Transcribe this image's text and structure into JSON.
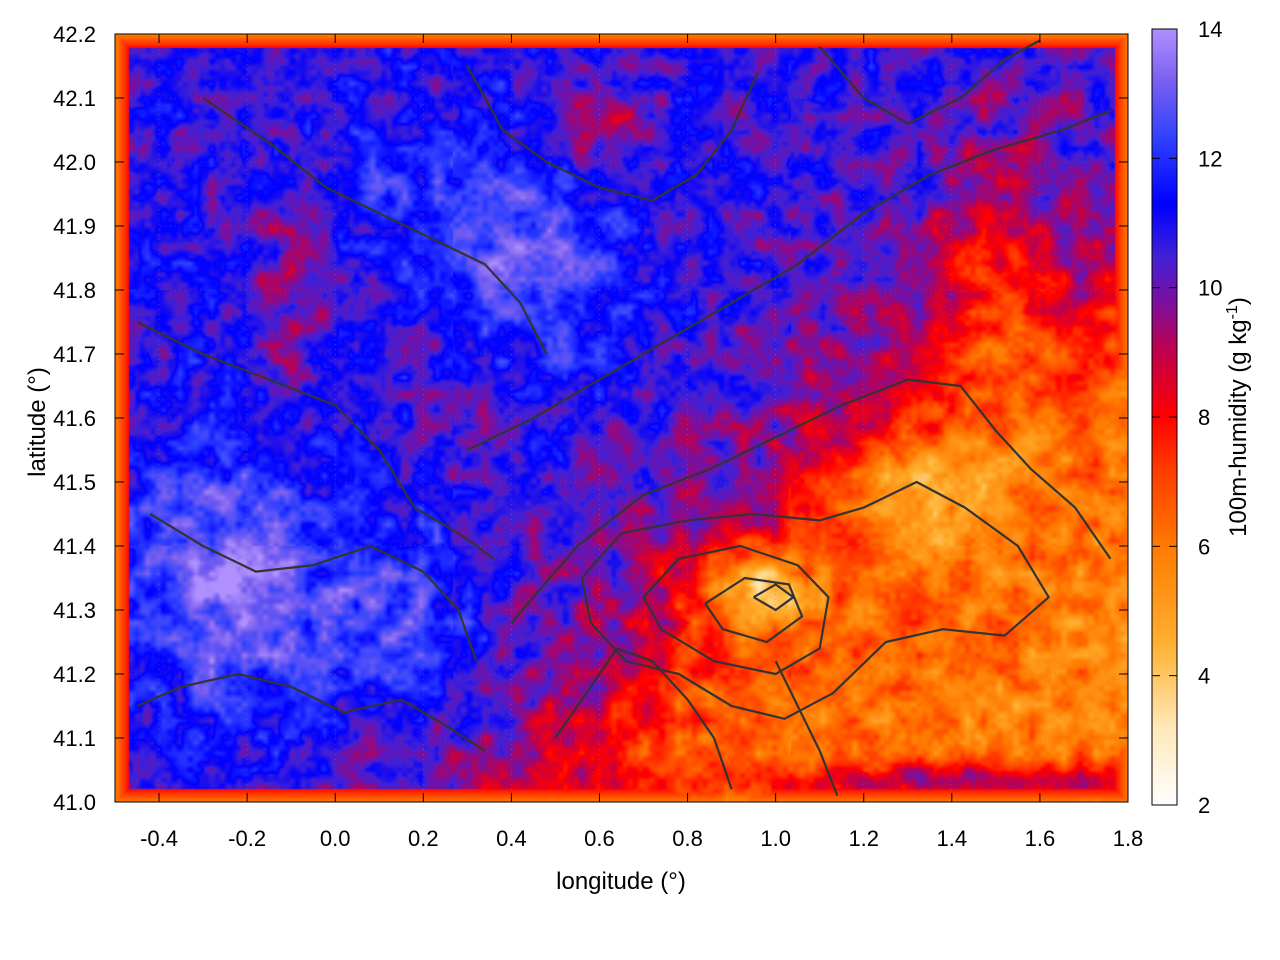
{
  "chart_data": {
    "type": "heatmap",
    "xlabel": "longitude (°)",
    "ylabel": "latitude (°)",
    "colorbar_label": "100m-humidity (g kg",
    "colorbar_label_sup": "-1",
    "colorbar_label_tail": ")",
    "xlim": [
      -0.5,
      1.8
    ],
    "ylim": [
      41.0,
      42.2
    ],
    "clim": [
      2,
      14
    ],
    "x_ticks": [
      {
        "v": -0.4,
        "label": "-0.4"
      },
      {
        "v": -0.2,
        "label": "-0.2"
      },
      {
        "v": 0.0,
        "label": "0.0"
      },
      {
        "v": 0.2,
        "label": "0.2"
      },
      {
        "v": 0.4,
        "label": "0.4"
      },
      {
        "v": 0.6,
        "label": "0.6"
      },
      {
        "v": 0.8,
        "label": "0.8"
      },
      {
        "v": 1.0,
        "label": "1.0"
      },
      {
        "v": 1.2,
        "label": "1.2"
      },
      {
        "v": 1.4,
        "label": "1.4"
      },
      {
        "v": 1.6,
        "label": "1.6"
      },
      {
        "v": 1.8,
        "label": "1.8"
      }
    ],
    "y_ticks": [
      {
        "v": 41.0,
        "label": "41.0"
      },
      {
        "v": 41.1,
        "label": "41.1"
      },
      {
        "v": 41.2,
        "label": "41.2"
      },
      {
        "v": 41.3,
        "label": "41.3"
      },
      {
        "v": 41.4,
        "label": "41.4"
      },
      {
        "v": 41.5,
        "label": "41.5"
      },
      {
        "v": 41.6,
        "label": "41.6"
      },
      {
        "v": 41.7,
        "label": "41.7"
      },
      {
        "v": 41.8,
        "label": "41.8"
      },
      {
        "v": 41.9,
        "label": "41.9"
      },
      {
        "v": 42.0,
        "label": "42.0"
      },
      {
        "v": 42.1,
        "label": "42.1"
      },
      {
        "v": 42.2,
        "label": "42.2"
      }
    ],
    "colorbar_ticks": [
      {
        "v": 2,
        "label": "2"
      },
      {
        "v": 4,
        "label": "4"
      },
      {
        "v": 6,
        "label": "6"
      },
      {
        "v": 8,
        "label": "8"
      },
      {
        "v": 10,
        "label": "10"
      },
      {
        "v": 12,
        "label": "12"
      },
      {
        "v": 14,
        "label": "14"
      }
    ],
    "grid": true,
    "colorscale": [
      {
        "v": 2,
        "color": "#ffffff"
      },
      {
        "v": 3.2,
        "color": "#ffe8b8"
      },
      {
        "v": 4.5,
        "color": "#ffb030"
      },
      {
        "v": 6,
        "color": "#ff7a00"
      },
      {
        "v": 7.2,
        "color": "#ff3a00"
      },
      {
        "v": 8,
        "color": "#ff0000"
      },
      {
        "v": 9,
        "color": "#c0004a"
      },
      {
        "v": 9.8,
        "color": "#7a10a0"
      },
      {
        "v": 10.5,
        "color": "#4020d8"
      },
      {
        "v": 11.3,
        "color": "#0000ff"
      },
      {
        "v": 12.3,
        "color": "#3040ff"
      },
      {
        "v": 13.2,
        "color": "#7a60f0"
      },
      {
        "v": 14,
        "color": "#b090ff"
      }
    ],
    "field_blobs": [
      {
        "lon": -0.25,
        "lat": 41.35,
        "sx": 0.22,
        "sy": 0.22,
        "amp": 2.5
      },
      {
        "lon": 0.15,
        "lat": 41.3,
        "sx": 0.2,
        "sy": 0.15,
        "amp": 2.0
      },
      {
        "lon": 0.45,
        "lat": 41.85,
        "sx": 0.22,
        "sy": 0.18,
        "amp": 2.2
      },
      {
        "lon": 0.1,
        "lat": 41.95,
        "sx": 0.15,
        "sy": 0.12,
        "amp": 1.0
      },
      {
        "lon": 0.95,
        "lat": 41.33,
        "sx": 0.16,
        "sy": 0.07,
        "amp": -4.0
      },
      {
        "lon": 1.3,
        "lat": 41.48,
        "sx": 0.18,
        "sy": 0.1,
        "amp": -3.0
      },
      {
        "lon": 1.5,
        "lat": 41.75,
        "sx": 0.15,
        "sy": 0.25,
        "amp": -1.6
      },
      {
        "lon": 0.85,
        "lat": 41.15,
        "sx": 0.2,
        "sy": 0.08,
        "amp": -0.9
      },
      {
        "lon": 1.45,
        "lat": 41.03,
        "sx": 0.4,
        "sy": 0.035,
        "amp": 4.0
      },
      {
        "lon": 1.7,
        "lat": 41.9,
        "sx": 0.1,
        "sy": 0.2,
        "amp": 1.5
      },
      {
        "lon": -0.1,
        "lat": 41.8,
        "sx": 0.1,
        "sy": 0.15,
        "amp": -1.2
      },
      {
        "lon": 0.6,
        "lat": 42.05,
        "sx": 0.12,
        "sy": 0.08,
        "amp": -1.8
      },
      {
        "lon": 0.3,
        "lat": 41.6,
        "sx": 0.12,
        "sy": 0.12,
        "amp": -0.8
      }
    ],
    "contours": [
      [
        [
          0.7,
          41.32
        ],
        [
          0.78,
          41.38
        ],
        [
          0.92,
          41.4
        ],
        [
          1.05,
          41.37
        ],
        [
          1.12,
          41.32
        ],
        [
          1.1,
          41.24
        ],
        [
          1.0,
          41.2
        ],
        [
          0.86,
          41.22
        ],
        [
          0.74,
          41.27
        ],
        [
          0.7,
          41.32
        ]
      ],
      [
        [
          0.84,
          41.31
        ],
        [
          0.93,
          41.35
        ],
        [
          1.03,
          41.34
        ],
        [
          1.06,
          41.29
        ],
        [
          0.98,
          41.25
        ],
        [
          0.88,
          41.27
        ],
        [
          0.84,
          41.31
        ]
      ],
      [
        [
          0.95,
          41.32
        ],
        [
          1.0,
          41.34
        ],
        [
          1.04,
          41.32
        ],
        [
          1.0,
          41.3
        ],
        [
          0.95,
          41.32
        ]
      ],
      [
        [
          0.56,
          41.35
        ],
        [
          0.65,
          41.42
        ],
        [
          0.8,
          41.44
        ],
        [
          0.95,
          41.45
        ],
        [
          1.1,
          41.44
        ],
        [
          1.2,
          41.46
        ],
        [
          1.32,
          41.5
        ],
        [
          1.43,
          41.46
        ],
        [
          1.55,
          41.4
        ],
        [
          1.62,
          41.32
        ],
        [
          1.52,
          41.26
        ],
        [
          1.38,
          41.27
        ],
        [
          1.25,
          41.25
        ],
        [
          1.13,
          41.17
        ],
        [
          1.02,
          41.13
        ],
        [
          0.9,
          41.15
        ],
        [
          0.78,
          41.2
        ],
        [
          0.66,
          41.22
        ],
        [
          0.58,
          41.28
        ],
        [
          0.56,
          41.35
        ]
      ],
      [
        [
          0.4,
          41.28
        ],
        [
          0.55,
          41.4
        ],
        [
          0.7,
          41.48
        ],
        [
          0.85,
          41.52
        ],
        [
          1.0,
          41.57
        ],
        [
          1.15,
          41.62
        ],
        [
          1.3,
          41.66
        ],
        [
          1.42,
          41.65
        ],
        [
          1.5,
          41.58
        ],
        [
          1.58,
          41.52
        ],
        [
          1.68,
          41.46
        ],
        [
          1.76,
          41.38
        ]
      ],
      [
        [
          0.3,
          41.55
        ],
        [
          0.45,
          41.6
        ],
        [
          0.6,
          41.66
        ],
        [
          0.75,
          41.72
        ],
        [
          0.9,
          41.78
        ],
        [
          1.05,
          41.84
        ],
        [
          1.2,
          41.92
        ],
        [
          1.35,
          41.98
        ],
        [
          1.5,
          42.02
        ],
        [
          1.65,
          42.05
        ],
        [
          1.76,
          42.08
        ]
      ],
      [
        [
          -0.45,
          41.75
        ],
        [
          -0.3,
          41.7
        ],
        [
          -0.15,
          41.66
        ],
        [
          0.0,
          41.62
        ],
        [
          0.1,
          41.55
        ],
        [
          0.18,
          41.46
        ],
        [
          0.28,
          41.42
        ],
        [
          0.36,
          41.38
        ]
      ],
      [
        [
          -0.42,
          41.45
        ],
        [
          -0.3,
          41.4
        ],
        [
          -0.18,
          41.36
        ],
        [
          -0.05,
          41.37
        ],
        [
          0.08,
          41.4
        ],
        [
          0.2,
          41.36
        ],
        [
          0.28,
          41.3
        ],
        [
          0.32,
          41.22
        ]
      ],
      [
        [
          -0.45,
          41.15
        ],
        [
          -0.35,
          41.18
        ],
        [
          -0.22,
          41.2
        ],
        [
          -0.1,
          41.18
        ],
        [
          0.02,
          41.14
        ],
        [
          0.15,
          41.16
        ],
        [
          0.25,
          41.12
        ],
        [
          0.34,
          41.08
        ]
      ],
      [
        [
          -0.3,
          42.1
        ],
        [
          -0.15,
          42.03
        ],
        [
          -0.02,
          41.96
        ],
        [
          0.1,
          41.92
        ],
        [
          0.22,
          41.88
        ],
        [
          0.34,
          41.84
        ],
        [
          0.42,
          41.78
        ],
        [
          0.48,
          41.7
        ]
      ],
      [
        [
          0.3,
          42.15
        ],
        [
          0.38,
          42.05
        ],
        [
          0.48,
          42.0
        ],
        [
          0.6,
          41.96
        ],
        [
          0.72,
          41.94
        ],
        [
          0.82,
          41.98
        ],
        [
          0.9,
          42.05
        ],
        [
          0.96,
          42.14
        ]
      ],
      [
        [
          1.1,
          42.18
        ],
        [
          1.2,
          42.1
        ],
        [
          1.3,
          42.06
        ],
        [
          1.42,
          42.1
        ],
        [
          1.52,
          42.16
        ],
        [
          1.6,
          42.19
        ]
      ],
      [
        [
          0.5,
          41.1
        ],
        [
          0.58,
          41.18
        ],
        [
          0.64,
          41.24
        ],
        [
          0.72,
          41.22
        ],
        [
          0.8,
          41.16
        ],
        [
          0.86,
          41.1
        ],
        [
          0.9,
          41.02
        ]
      ],
      [
        [
          1.0,
          41.22
        ],
        [
          1.05,
          41.15
        ],
        [
          1.1,
          41.08
        ],
        [
          1.14,
          41.01
        ]
      ]
    ]
  }
}
